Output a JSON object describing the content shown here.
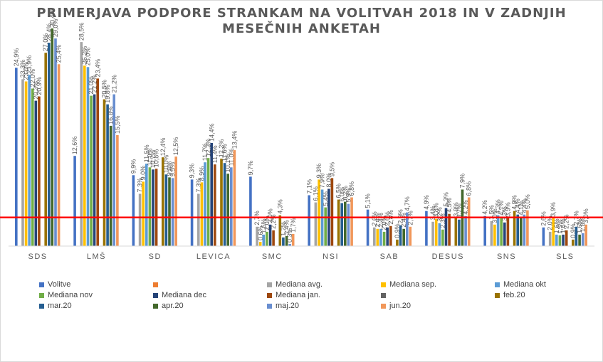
{
  "chart_data": {
    "type": "bar",
    "title_lines": [
      "PRIMERJAVA PODPORE STRANKAM NA VOLITVAH 2018 IN V ZADNJIH",
      "MESEČNIH ANKETAH"
    ],
    "categories": [
      "SDS",
      "LMŠ",
      "SD",
      "LEVICA",
      "SMC",
      "NSI",
      "SAB",
      "DESUS",
      "SNS",
      "SLS"
    ],
    "ylim": [
      0,
      30
    ],
    "reference_line": {
      "value": 4,
      "color": "#ff0000"
    },
    "grid": false,
    "legend_position": "bottom",
    "series": [
      {
        "name": "Volitve",
        "color": "#4472c4",
        "values": [
          24.9,
          12.6,
          9.9,
          9.3,
          9.7,
          7.1,
          5.1,
          4.9,
          4.2,
          2.6
        ],
        "labels": [
          "24,9%",
          "12,6%",
          "9,9%",
          "9,3%",
          "9,7%",
          "7,1%",
          "5,1%",
          "4,9%",
          "4,2%",
          "2,6%"
        ]
      },
      {
        "name": "",
        "color": "#ed7d31",
        "values": [
          null,
          null,
          null,
          null,
          null,
          null,
          null,
          null,
          null,
          null
        ],
        "labels": [
          "",
          "",
          "",
          "",
          "",
          "",
          "",
          "",
          "",
          ""
        ]
      },
      {
        "name": "Mediana avg.",
        "color": "#a5a5a5",
        "values": [
          23.3,
          28.5,
          7.3,
          7.3,
          2.7,
          6.1,
          2.6,
          3.4,
          3.5,
          2.0
        ],
        "labels": [
          "23,3%",
          "28,5%",
          "7,3%",
          "7,3%",
          "2,7%",
          "6,1%",
          "2,6%",
          "3,4%",
          "3,5%",
          "2,0%"
        ]
      },
      {
        "name": "Mediana sep.",
        "color": "#ffc000",
        "values": [
          23.0,
          25.2,
          9.0,
          8.9,
          0.6,
          9.3,
          2.4,
          3.8,
          3.0,
          3.9
        ],
        "labels": [
          "23,0%",
          "25,2%",
          "9,0%",
          "8,9%",
          "0,6%",
          "9,3%",
          "2,4%",
          "3,8%",
          "3,0%",
          "3,9%"
        ]
      },
      {
        "name": "Mediana okt",
        "color": "#5b9bd5",
        "values": [
          23.9,
          25.0,
          11.5,
          11.7,
          1.6,
          7.9,
          2.4,
          3.2,
          4.3,
          1.6
        ],
        "labels": [
          "23,9%",
          "25,0%",
          "11,5%",
          "11,7%",
          "1,6%",
          "7,9%",
          "2,4%",
          "3,2%",
          "4,3%",
          "1,6%"
        ]
      },
      {
        "name": "Mediana nov",
        "color": "#70ad47",
        "values": [
          22.0,
          21.0,
          11.0,
          12.3,
          2.0,
          5.4,
          2.0,
          2.3,
          4.1,
          1.5
        ],
        "labels": [
          "22,0%",
          "21,0%",
          "11,0%",
          "12,3%",
          "2,0%",
          "5,4%",
          "2,0%",
          "2,3%",
          "4,1%",
          "1,5%"
        ]
      },
      {
        "name": "Mediana dec",
        "color": "#264478",
        "values": [
          20.3,
          21.2,
          10.7,
          14.4,
          3.0,
          8.0,
          2.6,
          5.3,
          3.3,
          1.6
        ],
        "labels": [
          "20,3%",
          "21,2%",
          "10,7%",
          "14,4%",
          "3,0%",
          "8,0%",
          "2,6%",
          "5,3%",
          "3,3%",
          "1,6%"
        ]
      },
      {
        "name": "Mediana jan.",
        "color": "#9e480e",
        "values": [
          20.9,
          23.4,
          10.8,
          11.4,
          2.2,
          9.5,
          2.8,
          4.5,
          3.9,
          2.2
        ],
        "labels": [
          "20,9%",
          "23,4%",
          "10,8%",
          "11,4%",
          "2,2%",
          "9,5%",
          "2,8%",
          "4,5%",
          "3,9%",
          "2,2%"
        ]
      },
      {
        "name": "",
        "color": "#636363",
        "values": [
          null,
          null,
          null,
          null,
          null,
          null,
          null,
          null,
          null,
          null
        ],
        "labels": [
          "",
          "",
          "",
          "",
          "",
          "",
          "",
          "",
          "",
          ""
        ]
      },
      {
        "name": "feb.20",
        "color": "#997300",
        "values": [
          27.0,
          20.5,
          12.4,
          12.2,
          4.3,
          6.5,
          0.9,
          3.9,
          4.9,
          0.9
        ],
        "labels": [
          "27,0%",
          "20,5%",
          "12,4%",
          "12,2%",
          "4,3%",
          "6,5%",
          "0,9%",
          "3,9%",
          "4,9%",
          "0,9%"
        ]
      },
      {
        "name": "mar.20",
        "color": "#255e91",
        "values": [
          28.4,
          19.8,
          10.0,
          11.6,
          1.2,
          6.0,
          2.9,
          3.7,
          4.4,
          2.7
        ],
        "labels": [
          "28,4%",
          "19,8%",
          "10,0%",
          "11,6%",
          "1,2%",
          "6,0%",
          "2,9%",
          "3,7%",
          "4,4%",
          "2,7%"
        ]
      },
      {
        "name": "apr.20",
        "color": "#43682b",
        "values": [
          30.4,
          16.8,
          9.6,
          10.1,
          1.4,
          6.2,
          2.4,
          7.9,
          4.1,
          1.6
        ],
        "labels": [
          "30,4%",
          "16,8%",
          "9,6%",
          "10,1%",
          "1,4%",
          "6,2%",
          "2,4%",
          "7,9%",
          "4,1%",
          "1,6%"
        ]
      },
      {
        "name": "maj.20",
        "color": "#698ed0",
        "values": [
          29.0,
          21.2,
          9.5,
          11.0,
          0.3,
          5.9,
          4.7,
          4.2,
          4.4,
          1.8
        ],
        "labels": [
          "29,0%",
          "21,2%",
          "9,5%",
          "11,0%",
          "0,3%",
          "5,9%",
          "4,7%",
          "4,2%",
          "4,4%",
          "1,8%"
        ]
      },
      {
        "name": "jun.20",
        "color": "#f1975a",
        "values": [
          25.4,
          15.5,
          12.5,
          13.4,
          1.7,
          6.8,
          2.7,
          6.8,
          5.0,
          3.0
        ],
        "labels": [
          "25,4%",
          "15,5%",
          "12,5%",
          "13,4%",
          "1,7%",
          "6,8%",
          "2,7%",
          "6,8%",
          "5,0%",
          "3,0%"
        ]
      }
    ]
  }
}
